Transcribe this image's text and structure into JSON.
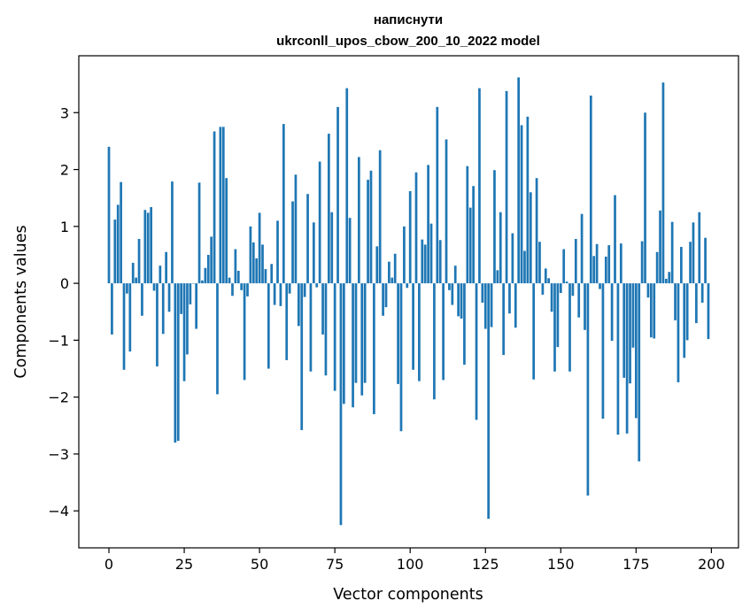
{
  "chart_data": {
    "type": "bar",
    "title": "написнути",
    "subtitle": "ukrconll_upos_cbow_200_10_2022 model",
    "xlabel": "Vector components",
    "ylabel": "Components values",
    "xlim": [
      -10,
      209
    ],
    "ylim": [
      -4.65,
      4.0
    ],
    "xticks": [
      0,
      25,
      50,
      75,
      100,
      125,
      150,
      175,
      200
    ],
    "xtick_labels": [
      "0",
      "25",
      "50",
      "75",
      "100",
      "125",
      "150",
      "175",
      "200"
    ],
    "yticks": [
      -4,
      -3,
      -2,
      -1,
      0,
      1,
      2,
      3
    ],
    "ytick_labels": [
      "−4",
      "−3",
      "−2",
      "−1",
      "0",
      "1",
      "2",
      "3"
    ],
    "grid": false,
    "bar_color": "#1f77b4",
    "values": [
      2.4,
      -0.9,
      1.12,
      1.38,
      1.78,
      -1.52,
      -0.18,
      -1.2,
      0.36,
      0.1,
      0.78,
      -0.57,
      1.29,
      1.24,
      1.34,
      -0.13,
      -1.46,
      0.31,
      -0.89,
      0.55,
      -0.5,
      1.79,
      -2.8,
      -2.77,
      -0.54,
      -1.72,
      -1.25,
      -0.37,
      0.0,
      -0.8,
      1.77,
      0.05,
      0.27,
      0.5,
      0.82,
      2.67,
      -1.95,
      2.75,
      2.75,
      1.85,
      0.1,
      -0.22,
      0.6,
      0.22,
      -0.12,
      -1.7,
      -0.23,
      1.0,
      0.72,
      0.44,
      1.24,
      0.68,
      0.25,
      -1.5,
      0.34,
      -0.38,
      1.1,
      -0.4,
      2.8,
      -1.35,
      -0.18,
      1.44,
      1.91,
      -0.75,
      -2.58,
      -0.24,
      1.57,
      -1.55,
      1.07,
      -0.07,
      2.14,
      -0.9,
      -1.62,
      2.63,
      1.25,
      -1.89,
      3.1,
      -4.25,
      -2.12,
      3.43,
      1.15,
      -2.18,
      -1.75,
      2.22,
      -1.97,
      -1.75,
      1.82,
      1.98,
      -2.3,
      0.65,
      2.34,
      -0.57,
      -0.42,
      0.38,
      0.1,
      0.52,
      -1.77,
      -2.6,
      1.0,
      -0.08,
      1.62,
      -1.52,
      1.95,
      -1.72,
      0.77,
      0.68,
      2.08,
      1.05,
      -2.04,
      3.1,
      0.76,
      -1.7,
      2.53,
      -0.12,
      -0.38,
      0.31,
      -0.58,
      -0.62,
      -1.43,
      2.06,
      1.33,
      1.71,
      -2.4,
      3.43,
      -0.34,
      -0.8,
      -4.14,
      -0.77,
      1.99,
      0.23,
      1.25,
      -1.26,
      3.38,
      -0.53,
      0.88,
      -0.78,
      3.62,
      2.78,
      0.57,
      2.93,
      1.6,
      -1.69,
      1.85,
      0.73,
      -0.2,
      0.26,
      0.09,
      -0.5,
      -1.55,
      -1.12,
      -0.17,
      0.6,
      0.03,
      -1.55,
      -0.22,
      0.78,
      -0.6,
      1.22,
      -0.82,
      -3.73,
      3.3,
      0.48,
      0.69,
      -0.1,
      -2.38,
      0.47,
      0.67,
      -1.01,
      1.55,
      -2.66,
      0.7,
      -1.66,
      -2.64,
      -1.76,
      -1.13,
      -2.37,
      -3.13,
      0.74,
      3.0,
      -0.25,
      -0.95,
      -0.97,
      0.55,
      1.28,
      3.53,
      0.08,
      0.2,
      1.08,
      -0.65,
      -1.74,
      0.64,
      -1.31,
      -1.0,
      0.73,
      1.07,
      -0.7,
      1.25,
      -0.34,
      0.8,
      -0.98
    ]
  }
}
